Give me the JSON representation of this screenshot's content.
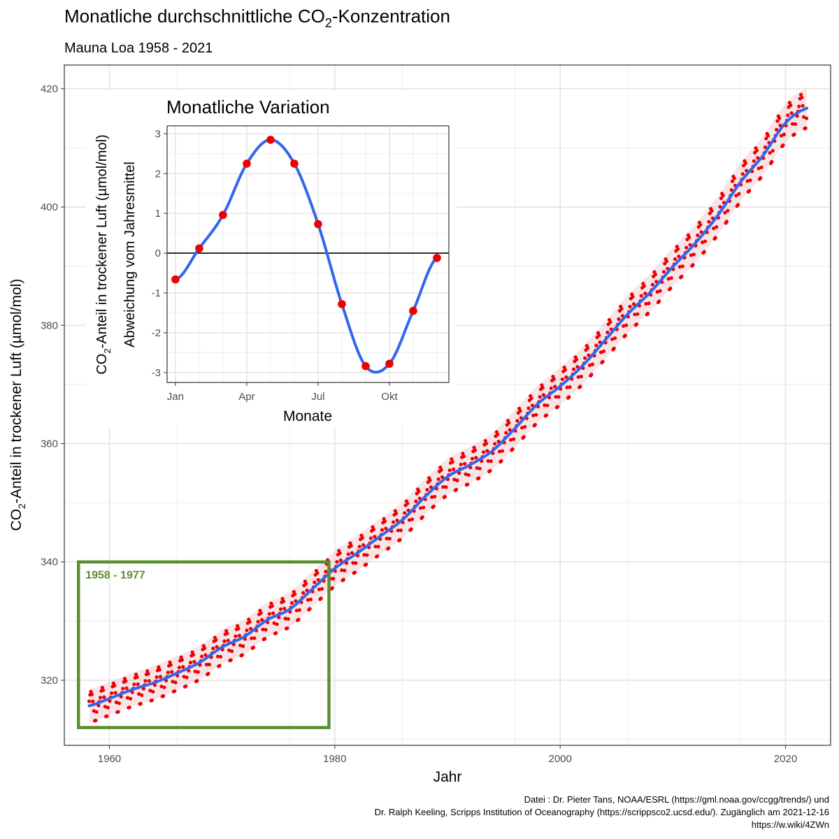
{
  "title_main": "Monatliche durchschnittliche CO",
  "title_sub": "2",
  "title_end": "-Konzentration",
  "subtitle": "Mauna Loa 1958 - 2021",
  "caption": [
    "Datei : Dr. Pieter Tans, NOAA/ESRL (https://gml.noaa.gov/ccgg/trends/) und",
    "Dr. Ralph Keeling, Scripps Institution of Oceanography (https://scrippsco2.ucsd.edu/). Zugänglich am 2021-12-16",
    "https://w.wiki/4ZWn"
  ],
  "highlight_label": "1958 - 1977",
  "colors": {
    "points": "#ee0000",
    "trend": "#3366ee",
    "band": "#e8b4bc",
    "highlight": "#5a8f2e",
    "grid": "#ebebeb"
  },
  "chart_data": [
    {
      "type": "scatter",
      "xlabel": "Jahr",
      "ylabel_parts": [
        "CO",
        "2",
        "-Anteil in trockener Luft (µmol/mol)"
      ],
      "xlim": [
        1956,
        2024
      ],
      "ylim": [
        309,
        424
      ],
      "x_ticks": [
        1960,
        1980,
        2000,
        2020
      ],
      "x_tick_labels": [
        "1960",
        "1980",
        "2000",
        "2020"
      ],
      "y_ticks": [
        320,
        340,
        360,
        380,
        400,
        420
      ],
      "y_tick_labels": [
        "320",
        "340",
        "360",
        "380",
        "400",
        "420"
      ],
      "highlight_range": {
        "x": [
          1958,
          1977
        ],
        "y": [
          312,
          340
        ]
      },
      "series": [
        {
          "x": [
            1958,
            1960,
            1962,
            1964,
            1966,
            1968,
            1970,
            1972,
            1974,
            1976,
            1978,
            1980,
            1982,
            1984,
            1986,
            1988,
            1990,
            1992,
            1994,
            1996,
            1998,
            2000,
            2002,
            2004,
            2006,
            2008,
            2010,
            2012,
            2014,
            2016,
            2018,
            2020,
            2021.9
          ],
          "y": [
            315.6,
            316.9,
            318.4,
            319.6,
            321.2,
            323.0,
            325.6,
            327.4,
            330.2,
            332.0,
            335.4,
            338.9,
            341.5,
            344.3,
            347.1,
            351.0,
            354.4,
            356.4,
            358.8,
            362.6,
            366.7,
            369.7,
            373.2,
            377.5,
            381.9,
            385.6,
            389.9,
            393.9,
            398.6,
            404.2,
            408.7,
            414.2,
            416.7
          ]
        }
      ],
      "seasonal_amplitude": [
        2.8,
        3.3
      ],
      "seasonal_cycle": [
        -0.45,
        0.13,
        0.78,
        1.85,
        2.36,
        1.85,
        0.6,
        -1.1,
        -2.85,
        -2.85,
        -1.45,
        -0.08
      ]
    },
    {
      "type": "line",
      "title": "Monatliche Variation",
      "xlabel": "Monate",
      "ylabel_line1_parts": [
        "CO",
        "2",
        "-Anteil in trockener Luft (µmol/mol)"
      ],
      "ylabel_line2": "Abweichung vom Jahresmittel",
      "xlim": [
        0.65,
        12.5
      ],
      "ylim": [
        -3.25,
        3.2
      ],
      "x_ticks": [
        1,
        4,
        7,
        10
      ],
      "x_tick_labels": [
        "Jan",
        "Apr",
        "Jul",
        "Okt"
      ],
      "y_ticks": [
        -3,
        -2,
        -1,
        0,
        1,
        2,
        3
      ],
      "y_tick_labels": [
        "-3",
        "-2",
        "-1",
        "0",
        "1",
        "2",
        "3"
      ],
      "months": [
        1,
        2,
        3,
        4,
        5,
        6,
        7,
        8,
        9,
        10,
        11,
        12
      ],
      "values": [
        -0.66,
        0.12,
        0.96,
        2.25,
        2.85,
        2.25,
        0.73,
        -1.28,
        -2.84,
        -2.78,
        -1.45,
        -0.12
      ]
    }
  ]
}
